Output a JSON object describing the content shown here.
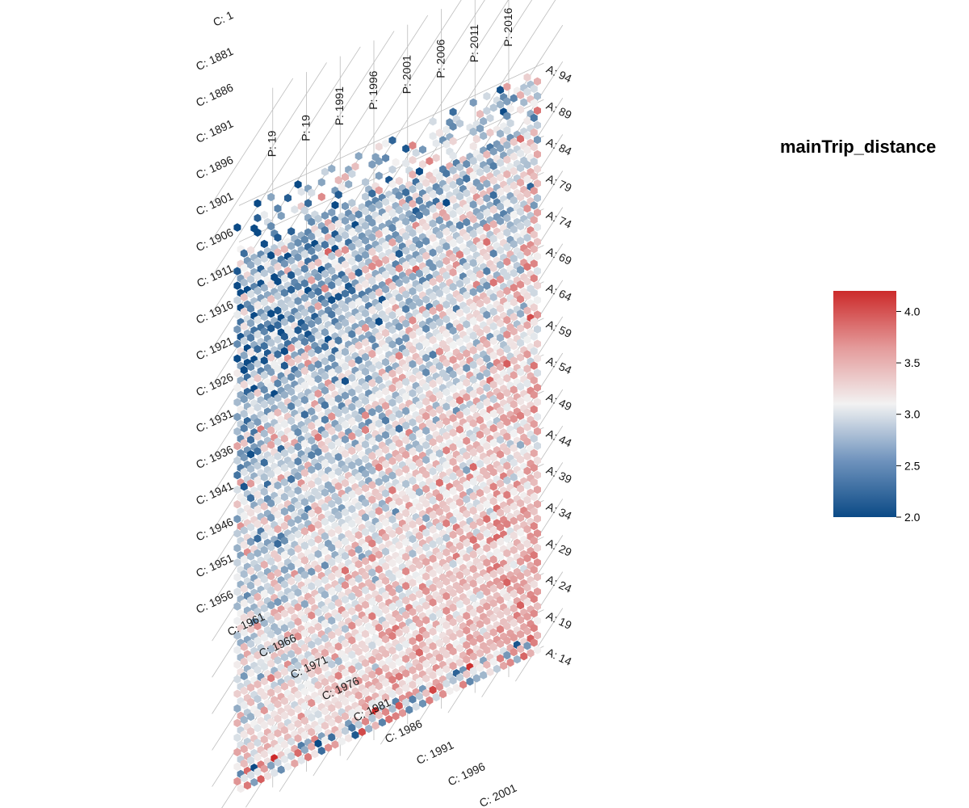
{
  "chart_data": {
    "type": "heatmap",
    "subtype": "hexagonal age-period-cohort surface",
    "colorbar_title": "mainTrip_distance",
    "color_scale": {
      "min": 2.0,
      "mid": 3.1,
      "max": 4.2,
      "low_color": "#0b4a86",
      "mid_color": "#f2f2f2",
      "high_color": "#cc2a2a"
    },
    "legend": {
      "position": "right",
      "ticks": [
        {
          "value": 2.0,
          "label": "2.0"
        },
        {
          "value": 2.5,
          "label": "2.5"
        },
        {
          "value": 3.0,
          "label": "3.0"
        },
        {
          "value": 3.5,
          "label": "3.5"
        },
        {
          "value": 4.0,
          "label": "4.0"
        }
      ]
    },
    "axes": {
      "age": {
        "range": [
          14,
          96
        ],
        "tick_labels": [
          "A: 94",
          "A: 89",
          "A: 84",
          "A: 79",
          "A: 74",
          "A: 69",
          "A: 64",
          "A: 59",
          "A: 54",
          "A: 49",
          "A: 44",
          "A: 39",
          "A: 34",
          "A: 29",
          "A: 24",
          "A: 19",
          "A: 14"
        ]
      },
      "period": {
        "range": [
          1976,
          2020
        ],
        "tick_labels": [
          "P: 19",
          "P: 19",
          "P: 1991",
          "P: 1996",
          "P: 2001",
          "P: 2006",
          "P: 2011",
          "P: 2016"
        ]
      },
      "cohort": {
        "tick_labels": [
          "C: 1",
          "C: 1881",
          "C: 1886",
          "C: 1891",
          "C: 1896",
          "C: 1901",
          "C: 1906",
          "C: 1911",
          "C: 1916",
          "C: 1921",
          "C: 1926",
          "C: 1931",
          "C: 1936",
          "C: 1941",
          "C: 1946",
          "C: 1951",
          "C: 1956",
          "C: 1961",
          "C: 1966",
          "C: 1971",
          "C: 1976",
          "C: 1981",
          "C: 1986",
          "C: 1991",
          "C: 1996",
          "C: 2001"
        ]
      }
    },
    "description_of_pattern": {
      "older_ages_earlier_periods": "predominantly blue (approx. 2.0–2.8)",
      "younger_ages_later_periods": "predominantly light red (approx. 3.2–3.8)",
      "grid": true
    }
  }
}
